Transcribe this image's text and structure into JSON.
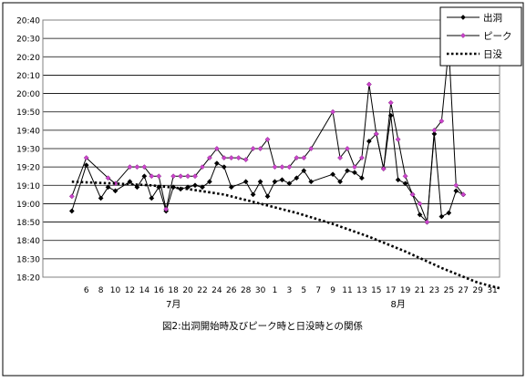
{
  "chart_data": {
    "type": "line",
    "title": "図2:出洞開始時及びピーク時と日没時との関係",
    "xlabel": "",
    "ylabel": "",
    "y_ticks": [
      "18:20",
      "18:30",
      "18:40",
      "18:50",
      "19:00",
      "19:10",
      "19:20",
      "19:30",
      "19:40",
      "19:50",
      "20:00",
      "20:10",
      "20:20",
      "20:30",
      "20:40"
    ],
    "ylim": [
      1100,
      1240
    ],
    "x_range": [
      1,
      62
    ],
    "x_ticks": [
      {
        "x": 6,
        "label": "6"
      },
      {
        "x": 8,
        "label": "8"
      },
      {
        "x": 10,
        "label": "10"
      },
      {
        "x": 12,
        "label": "12"
      },
      {
        "x": 14,
        "label": "14"
      },
      {
        "x": 16,
        "label": "16"
      },
      {
        "x": 18,
        "label": "18"
      },
      {
        "x": 20,
        "label": "20"
      },
      {
        "x": 22,
        "label": "22"
      },
      {
        "x": 24,
        "label": "24"
      },
      {
        "x": 26,
        "label": "26"
      },
      {
        "x": 28,
        "label": "28"
      },
      {
        "x": 30,
        "label": "30"
      },
      {
        "x": 32,
        "label": "1"
      },
      {
        "x": 34,
        "label": "3"
      },
      {
        "x": 36,
        "label": "5"
      },
      {
        "x": 38,
        "label": "7"
      },
      {
        "x": 40,
        "label": "9"
      },
      {
        "x": 42,
        "label": "11"
      },
      {
        "x": 44,
        "label": "13"
      },
      {
        "x": 46,
        "label": "15"
      },
      {
        "x": 48,
        "label": "17"
      },
      {
        "x": 50,
        "label": "19"
      },
      {
        "x": 52,
        "label": "21"
      },
      {
        "x": 54,
        "label": "23"
      },
      {
        "x": 56,
        "label": "25"
      },
      {
        "x": 58,
        "label": "27"
      },
      {
        "x": 60,
        "label": "29"
      },
      {
        "x": 62,
        "label": "31"
      }
    ],
    "month_labels": [
      {
        "x": 18,
        "label": "7月"
      },
      {
        "x": 49,
        "label": "8月"
      }
    ],
    "grid": "horizontal",
    "legend_position": "top-right",
    "series": [
      {
        "name": "出洞",
        "style": "solid",
        "marker": "diamond",
        "color": "#000000",
        "marker_fill": "#000000",
        "x": [
          4,
          6,
          8,
          9,
          10,
          12,
          13,
          14,
          15,
          16,
          17,
          18,
          19,
          20,
          21,
          22,
          23,
          24,
          25,
          26,
          28,
          29,
          30,
          31,
          32,
          33,
          34,
          35,
          36,
          37,
          40,
          41,
          42,
          43,
          44,
          45,
          46,
          47,
          48,
          49,
          50,
          51,
          52,
          53,
          54,
          55,
          56,
          57,
          58
        ],
        "values": [
          1136,
          1161,
          1143,
          1149,
          1147,
          1152,
          1149,
          1155,
          1143,
          1149,
          1136,
          1149,
          1148,
          1149,
          1150,
          1149,
          1152,
          1162,
          1160,
          1149,
          1152,
          1145,
          1152,
          1144,
          1152,
          1153,
          1151,
          1154,
          1158,
          1152,
          1156,
          1152,
          1158,
          1157,
          1154,
          1174,
          1178,
          1159,
          1188,
          1153,
          1151,
          1145,
          1134,
          1130,
          1178,
          1133,
          1135,
          1147,
          1145
        ]
      },
      {
        "name": "ピーク",
        "style": "solid",
        "marker": "diamond",
        "color": "#000000",
        "marker_fill": "#cc44cc",
        "x": [
          4,
          6,
          9,
          10,
          12,
          13,
          14,
          15,
          16,
          17,
          18,
          19,
          20,
          21,
          22,
          23,
          24,
          25,
          26,
          27,
          28,
          29,
          30,
          31,
          32,
          33,
          34,
          35,
          36,
          37,
          40,
          41,
          42,
          43,
          44,
          45,
          46,
          47,
          48,
          49,
          50,
          51,
          52,
          53,
          54,
          55,
          56,
          57,
          58
        ],
        "values": [
          1144,
          1165,
          1154,
          1151,
          1160,
          1160,
          1160,
          1155,
          1155,
          1137,
          1155,
          1155,
          1155,
          1155,
          1160,
          1165,
          1170,
          1165,
          1165,
          1165,
          1164,
          1170,
          1170,
          1175,
          1160,
          1160,
          1160,
          1165,
          1165,
          1170,
          1190,
          1165,
          1170,
          1160,
          1165,
          1205,
          1178,
          1159,
          1195,
          1175,
          1155,
          1145,
          1140,
          1130,
          1180,
          1185,
          1225,
          1150,
          1145
        ]
      },
      {
        "name": "日没",
        "style": "dotted",
        "marker": "none",
        "color": "#000000",
        "x": [
          4,
          10,
          15,
          20,
          25,
          30,
          35,
          40,
          45,
          50,
          55,
          60,
          63
        ],
        "values": [
          1152,
          1151,
          1150,
          1148,
          1145,
          1140,
          1135,
          1129,
          1122,
          1114,
          1105,
          1097,
          1094
        ]
      }
    ]
  }
}
